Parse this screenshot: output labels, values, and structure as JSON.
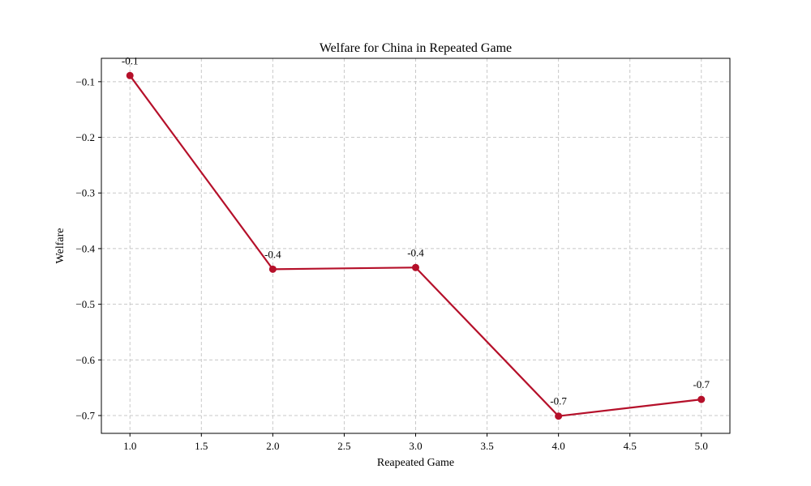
{
  "chart_data": {
    "type": "line",
    "title": "Welfare for China in Repeated Game",
    "xlabel": "Reapeated Game",
    "ylabel": "Welfare",
    "xlim": [
      0.8,
      5.2
    ],
    "ylim": [
      -0.732,
      -0.058
    ],
    "xticks": [
      1.0,
      1.5,
      2.0,
      2.5,
      3.0,
      3.5,
      4.0,
      4.5,
      5.0
    ],
    "xtick_labels": [
      "1.0",
      "1.5",
      "2.0",
      "2.5",
      "3.0",
      "3.5",
      "4.0",
      "4.5",
      "5.0"
    ],
    "yticks": [
      -0.1,
      -0.2,
      -0.3,
      -0.4,
      -0.5,
      -0.6,
      -0.7
    ],
    "ytick_labels": [
      "−0.1",
      "−0.2",
      "−0.3",
      "−0.4",
      "−0.5",
      "−0.6",
      "−0.7"
    ],
    "grid": true,
    "series": [
      {
        "x": [
          1,
          2,
          3,
          4,
          5
        ],
        "y": [
          -0.089,
          -0.437,
          -0.434,
          -0.701,
          -0.671
        ],
        "data_labels": [
          "-0.1",
          "-0.4",
          "-0.4",
          "-0.7",
          "-0.7"
        ],
        "color": "#b5102a",
        "marker": "circle"
      }
    ]
  }
}
